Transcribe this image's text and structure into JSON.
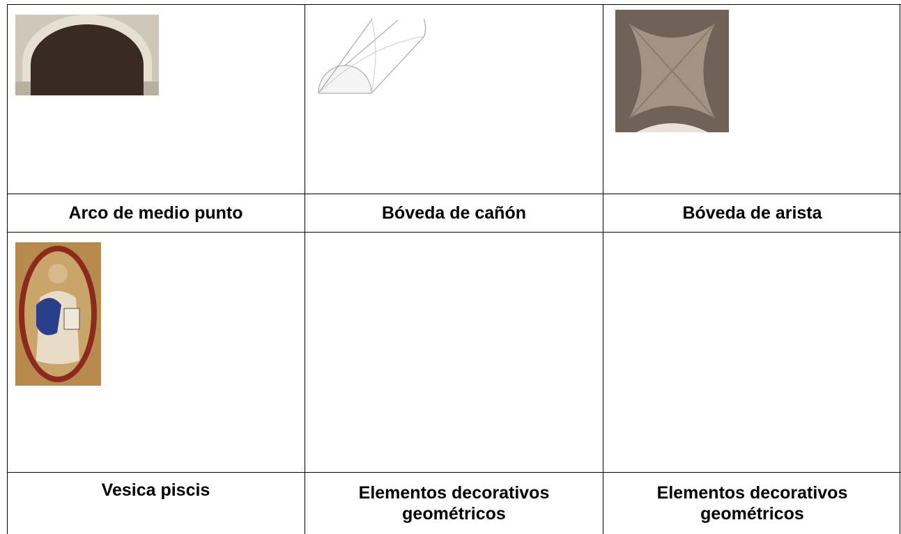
{
  "table": {
    "rows": [
      [
        "Arco de medio punto",
        "Bóveda de cañón",
        "Bóveda de arista"
      ],
      [
        "Vesica piscis",
        "Elementos decorativos geométricos",
        "Elementos decorativos geométricos"
      ]
    ]
  }
}
